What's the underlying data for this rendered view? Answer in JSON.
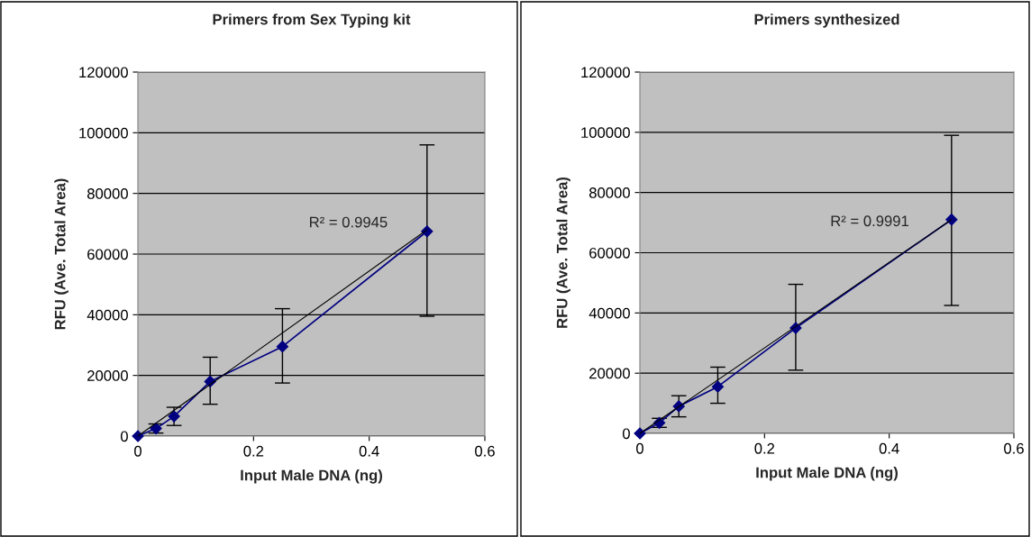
{
  "chart_data": [
    {
      "type": "line",
      "title": "Primers from Sex Typing kit",
      "xlabel": "Input Male DNA (ng)",
      "ylabel": "RFU (Ave. Total Area)",
      "xlim": [
        0,
        0.6
      ],
      "xticks": [
        0,
        0.2,
        0.4,
        0.6
      ],
      "ylim": [
        0,
        120000
      ],
      "yticks": [
        0,
        20000,
        40000,
        60000,
        80000,
        100000,
        120000
      ],
      "grid": "y",
      "legend": false,
      "annotations": [
        "R² = 0.9945"
      ],
      "series": [
        {
          "color": "#000080",
          "marker": "diamond",
          "x": [
            0,
            0.03125,
            0.0625,
            0.125,
            0.25,
            0.5
          ],
          "values": [
            0,
            2500,
            6500,
            18000,
            29500,
            67500
          ],
          "errors": [
            null,
            [
              1000,
              4000
            ],
            [
              3500,
              9500
            ],
            [
              10500,
              26000
            ],
            [
              17500,
              42000
            ],
            [
              39500,
              96000
            ]
          ]
        },
        {
          "color": "#000000",
          "marker": "none",
          "x": [
            0,
            0.5
          ],
          "values": [
            0,
            68000
          ]
        }
      ]
    },
    {
      "type": "line",
      "title": "Primers synthesized",
      "xlabel": "Input Male DNA (ng)",
      "ylabel": "RFU (Ave. Total Area)",
      "xlim": [
        0,
        0.6
      ],
      "xticks": [
        0,
        0.2,
        0.4,
        0.6
      ],
      "ylim": [
        0,
        120000
      ],
      "yticks": [
        0,
        20000,
        40000,
        60000,
        80000,
        100000,
        120000
      ],
      "grid": "y",
      "legend": false,
      "annotations": [
        "R² = 0.9991"
      ],
      "series": [
        {
          "color": "#000080",
          "marker": "diamond",
          "x": [
            0,
            0.03125,
            0.0625,
            0.125,
            0.25,
            0.5
          ],
          "values": [
            0,
            3500,
            9000,
            15500,
            35000,
            71000
          ],
          "errors": [
            null,
            [
              2000,
              5000
            ],
            [
              5500,
              12500
            ],
            [
              10000,
              22000
            ],
            [
              21000,
              49500
            ],
            [
              42500,
              99000
            ]
          ]
        },
        {
          "color": "#000000",
          "marker": "none",
          "x": [
            0,
            0.5
          ],
          "values": [
            0,
            71000
          ]
        }
      ]
    }
  ]
}
